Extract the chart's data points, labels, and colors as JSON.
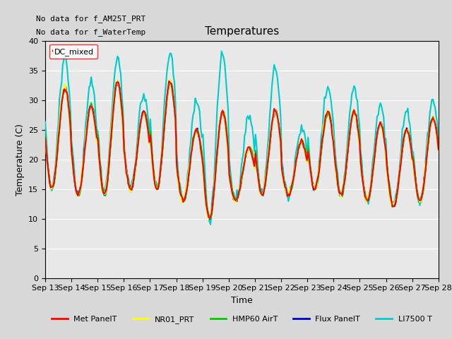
{
  "title": "Temperatures",
  "xlabel": "Time",
  "ylabel": "Temperature (C)",
  "ylim": [
    0,
    40
  ],
  "x_tick_labels": [
    "Sep 13",
    "Sep 14",
    "Sep 15",
    "Sep 16",
    "Sep 17",
    "Sep 18",
    "Sep 19",
    "Sep 20",
    "Sep 21",
    "Sep 22",
    "Sep 23",
    "Sep 24",
    "Sep 25",
    "Sep 26",
    "Sep 27",
    "Sep 28"
  ],
  "annotation_lines": [
    "No data for f_AM25T_PRT",
    "No data for f_WaterTemp"
  ],
  "legend_box_label": "DC_mixed",
  "series": {
    "Met_PanelT": {
      "color": "#ff0000",
      "lw": 1.5
    },
    "NR01_PRT": {
      "color": "#ffff00",
      "lw": 1.5
    },
    "HMP60_AirT": {
      "color": "#00cc00",
      "lw": 1.5
    },
    "Flux_PanelT": {
      "color": "#0000cc",
      "lw": 1.5
    },
    "LI7500_T": {
      "color": "#00cccc",
      "lw": 1.5
    }
  },
  "legend_entries": [
    {
      "label": "Met PanelT",
      "color": "#ff0000"
    },
    {
      "label": "NR01_PRT",
      "color": "#ffff00"
    },
    {
      "label": "HMP60 AirT",
      "color": "#00cc00"
    },
    {
      "label": "Flux PanelT",
      "color": "#0000cc"
    },
    {
      "label": "LI7500 T",
      "color": "#00cccc"
    }
  ],
  "day_mins": [
    15,
    14,
    14,
    15,
    15,
    13,
    10,
    13,
    14,
    14,
    15,
    14,
    13,
    12,
    13
  ],
  "day_maxes": [
    32,
    29,
    33,
    28,
    33,
    25,
    28,
    22,
    28,
    23,
    28,
    28,
    26,
    25,
    27
  ],
  "cyan_extra": [
    5,
    4,
    4,
    3,
    5,
    5,
    10,
    5,
    7,
    2,
    4,
    4,
    3,
    3,
    3
  ]
}
